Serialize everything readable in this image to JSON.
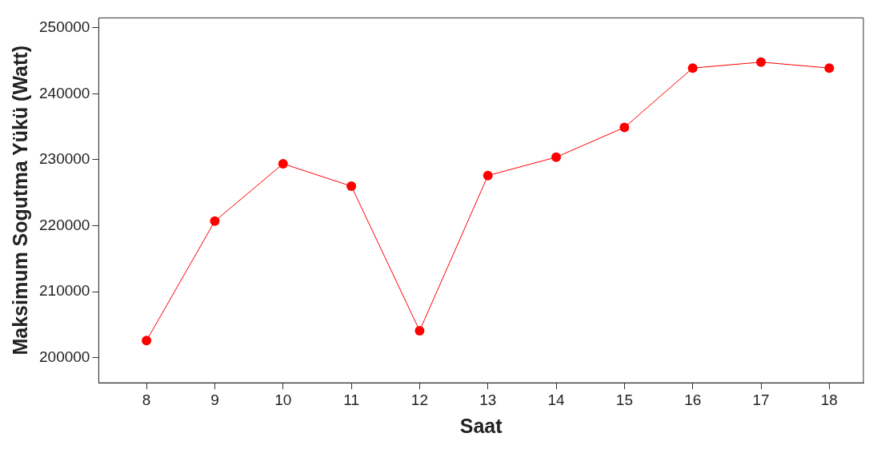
{
  "chart_data": {
    "type": "line",
    "xlabel": "Saat",
    "ylabel": "Maksimum Sogutma Yükü (Watt)",
    "x": [
      8,
      9,
      10,
      11,
      12,
      13,
      14,
      15,
      16,
      17,
      18
    ],
    "series": [
      {
        "color": "#ff0000",
        "values": [
          202600,
          220700,
          229400,
          226000,
          204100,
          227600,
          230400,
          234900,
          243900,
          244800,
          243900
        ]
      }
    ],
    "xlim": [
      7.3,
      18.5
    ],
    "xticks": [
      8,
      9,
      10,
      11,
      12,
      13,
      14,
      15,
      16,
      17,
      18
    ],
    "ylim": [
      196200,
      251500
    ],
    "yticks": [
      200000,
      210000,
      220000,
      230000,
      240000,
      250000
    ],
    "grid": false,
    "legend": false,
    "marker": "circle",
    "line_style": "solid"
  }
}
